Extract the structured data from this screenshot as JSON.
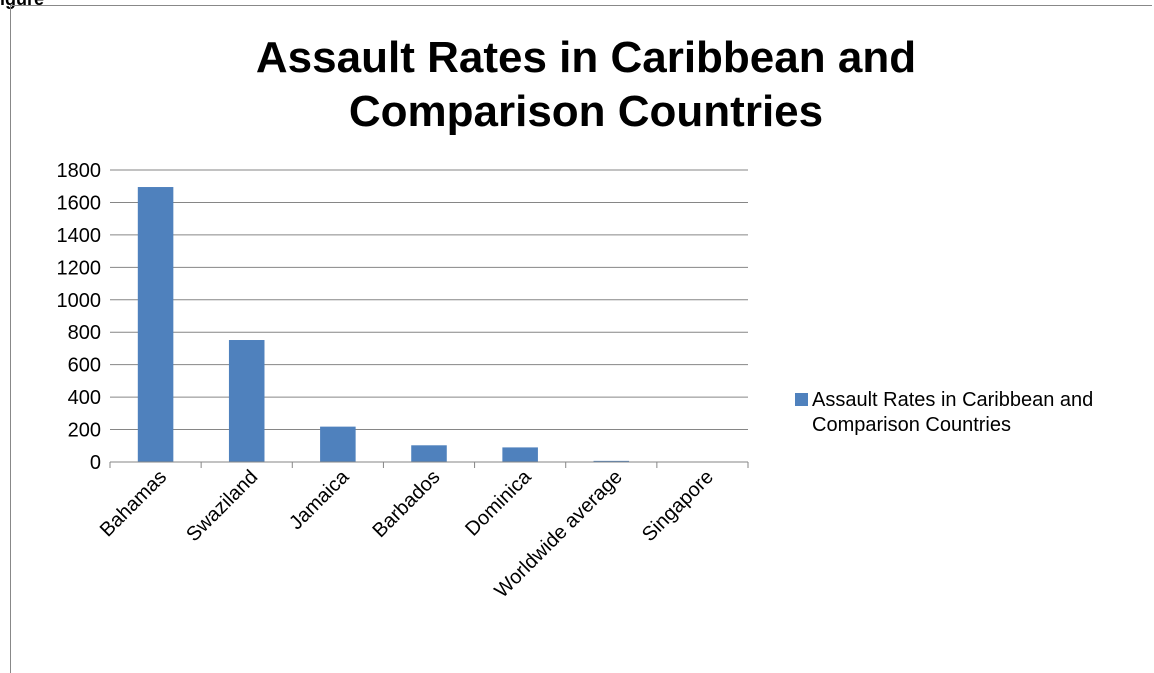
{
  "corner_text": "igure",
  "colors": {
    "bar": "#4F81BD",
    "grid": "#868686",
    "axis": "#868686"
  },
  "chart_data": {
    "type": "bar",
    "title": "Assault Rates in Caribbean and Comparison Countries",
    "title_lines": [
      "Assault Rates in Caribbean and",
      "Comparison Countries"
    ],
    "categories": [
      "Bahamas",
      "Swaziland",
      "Jamaica",
      "Barbados",
      "Dominica",
      "Worldwide average",
      "Singapore"
    ],
    "series": [
      {
        "name": "Assault Rates in Caribbean and Comparison Countries",
        "values": [
          1695,
          752,
          218,
          103,
          90,
          7,
          2
        ]
      }
    ],
    "ylim": [
      0,
      1800
    ],
    "yticks": [
      0,
      200,
      400,
      600,
      800,
      1000,
      1200,
      1400,
      1600,
      1800
    ],
    "xlabel": "",
    "ylabel": "",
    "grid": true,
    "legend_position": "right"
  }
}
